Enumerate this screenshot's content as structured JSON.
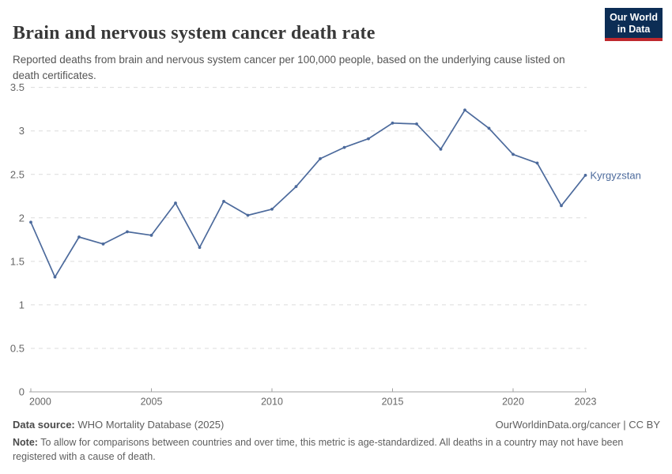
{
  "logo": {
    "line1": "Our World",
    "line2": "in Data"
  },
  "colors": {
    "line": "#4c6a9c",
    "grid": "#dcdcdc",
    "axis": "#a1a1a1",
    "tick_label": "#666666",
    "title_text": "#383838",
    "subtitle_text": "#555555",
    "footer_text": "#5e5e5e",
    "logo_bg": "#0c2d55",
    "logo_accent": "#be282d"
  },
  "chart_data": {
    "type": "line",
    "title": "Brain and nervous system cancer death rate",
    "subtitle": "Reported deaths from brain and nervous system cancer per 100,000 people, based on the underlying cause listed on death certificates.",
    "x": [
      2000,
      2001,
      2002,
      2003,
      2004,
      2005,
      2006,
      2007,
      2008,
      2009,
      2010,
      2011,
      2012,
      2013,
      2014,
      2015,
      2016,
      2017,
      2018,
      2019,
      2020,
      2021,
      2022,
      2023
    ],
    "series": [
      {
        "name": "Kyrgyzstan",
        "color": "#4c6a9c",
        "values": [
          1.95,
          1.32,
          1.78,
          1.7,
          1.84,
          1.8,
          2.17,
          1.66,
          2.19,
          2.03,
          2.1,
          2.36,
          2.68,
          2.81,
          2.91,
          3.09,
          3.08,
          2.79,
          3.24,
          3.03,
          2.73,
          2.63,
          2.14,
          2.49
        ]
      }
    ],
    "xlim": [
      2000,
      2023
    ],
    "ylim": [
      0,
      3.5
    ],
    "xticks": [
      2000,
      2005,
      2010,
      2015,
      2020,
      2023
    ],
    "yticks": [
      0,
      0.5,
      1,
      1.5,
      2,
      2.5,
      3,
      3.5
    ],
    "grid": "horizontal-dashed",
    "legend_position": "end-of-line-label"
  },
  "footer": {
    "source_label": "Data source:",
    "source_value": " WHO Mortality Database (2025)",
    "link": "OurWorldinData.org/cancer | CC BY",
    "note_label": "Note:",
    "note_text": " To allow for comparisons between countries and over time, this metric is age-standardized. All deaths in a country may not have been registered with a cause of death."
  }
}
